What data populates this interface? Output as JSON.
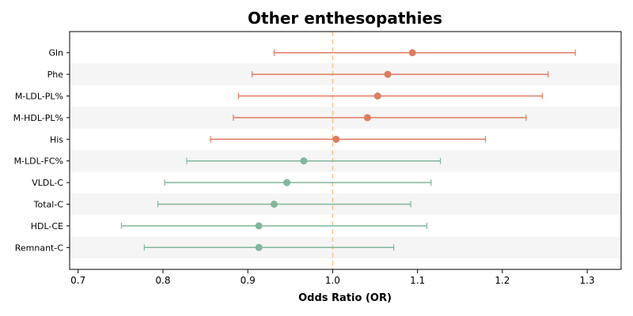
{
  "chart_data": {
    "type": "forest",
    "title": "Other enthesopathies",
    "xlabel": "Odds Ratio (OR)",
    "xlim": [
      0.69,
      1.34
    ],
    "xticks": [
      "0.7",
      "0.8",
      "0.9",
      "1.0",
      "1.1",
      "1.2",
      "1.3"
    ],
    "reference_line": 1.0,
    "rows": [
      {
        "label": "Gln",
        "or": 1.094,
        "lower": 0.931,
        "upper": 1.286,
        "color": "#E07B5F"
      },
      {
        "label": "Phe",
        "or": 1.065,
        "lower": 0.905,
        "upper": 1.254,
        "color": "#E07B5F"
      },
      {
        "label": "M-LDL-PL%",
        "or": 1.053,
        "lower": 0.889,
        "upper": 1.247,
        "color": "#E07B5F"
      },
      {
        "label": "M-HDL-PL%",
        "or": 1.041,
        "lower": 0.883,
        "upper": 1.228,
        "color": "#E07B5F"
      },
      {
        "label": "His",
        "or": 1.004,
        "lower": 0.856,
        "upper": 1.18,
        "color": "#E07B5F"
      },
      {
        "label": "M-LDL-FC%",
        "or": 0.966,
        "lower": 0.828,
        "upper": 1.127,
        "color": "#80B79C"
      },
      {
        "label": "VLDL-C",
        "or": 0.946,
        "lower": 0.802,
        "upper": 1.116,
        "color": "#80B79C"
      },
      {
        "label": "Total-C",
        "or": 0.931,
        "lower": 0.794,
        "upper": 1.092,
        "color": "#80B79C"
      },
      {
        "label": "HDL-CE",
        "or": 0.913,
        "lower": 0.751,
        "upper": 1.111,
        "color": "#80B79C"
      },
      {
        "label": "Remnant-C",
        "or": 0.913,
        "lower": 0.778,
        "upper": 1.072,
        "color": "#80B79C"
      }
    ],
    "reference_color": "#F3C68A",
    "stripe_color": "#F5F5F5"
  }
}
